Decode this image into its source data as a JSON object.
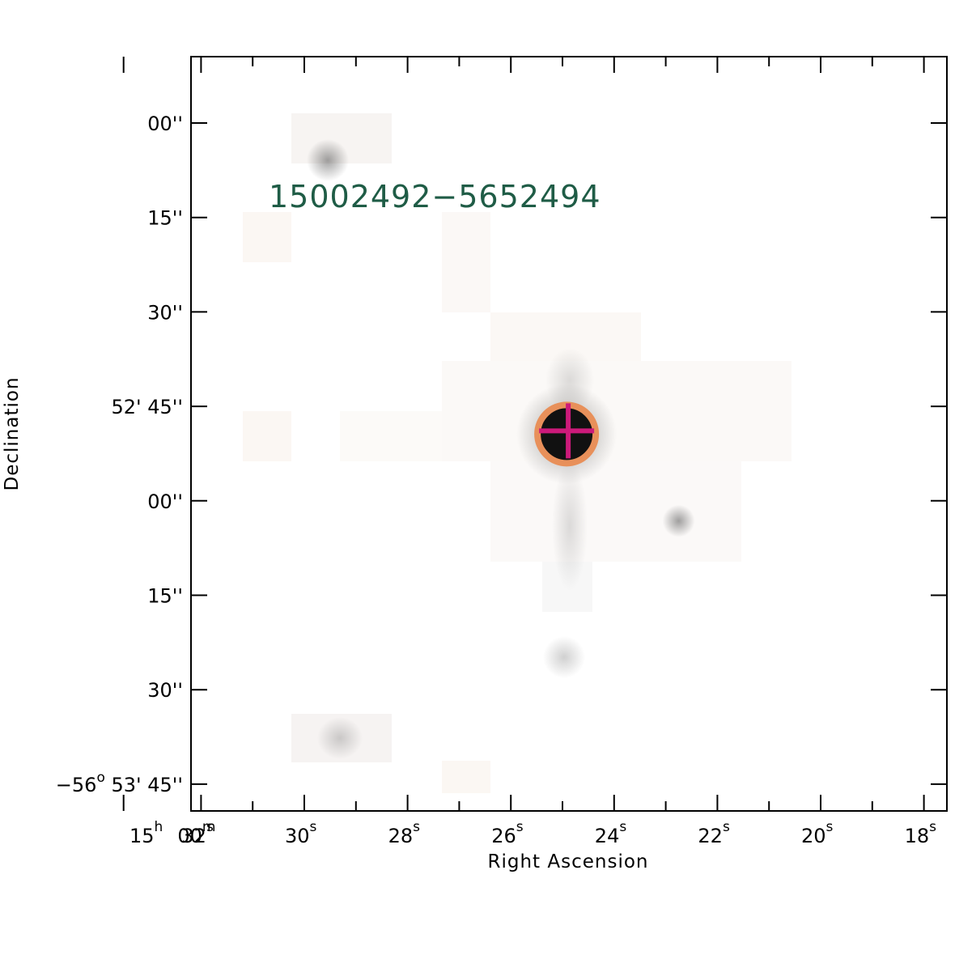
{
  "chart_data": {
    "type": "image",
    "source_label": "15002492−5652494",
    "xlabel": "Right Ascension",
    "ylabel": "Declination",
    "x_ticks": [
      {
        "main": "15",
        "sup1": "h",
        "main2": "00",
        "sup2": "m",
        "value_s": 33.5
      },
      {
        "main": "32",
        "sup1": "s",
        "value_s": 32
      },
      {
        "main": "30",
        "sup1": "s",
        "value_s": 30
      },
      {
        "main": "28",
        "sup1": "s",
        "value_s": 28
      },
      {
        "main": "26",
        "sup1": "s",
        "value_s": 26
      },
      {
        "main": "24",
        "sup1": "s",
        "value_s": 24
      },
      {
        "main": "22",
        "sup1": "s",
        "value_s": 22
      },
      {
        "main": "20",
        "sup1": "s",
        "value_s": 20
      },
      {
        "main": "18",
        "sup1": "s",
        "value_s": 18
      }
    ],
    "y_ticks": [
      {
        "label": "00''",
        "value_arcsec": 0
      },
      {
        "label": "15''",
        "value_arcsec": 15
      },
      {
        "label": "30''",
        "value_arcsec": 30
      },
      {
        "label": "52' 45''",
        "value_arcsec": 45
      },
      {
        "label": "00''",
        "value_arcsec": 60
      },
      {
        "label": "15''",
        "value_arcsec": 75
      },
      {
        "label": "30''",
        "value_arcsec": 90
      },
      {
        "label": "−56",
        "sup": "o",
        "rest": " 53' 45''",
        "value_arcsec": 105
      }
    ],
    "target": {
      "ra_s": 24.92,
      "dec_offset_arcsec": 49.4
    },
    "secondary_source": {
      "ra_s": 22.75,
      "dec_offset_arcsec": 63.2
    },
    "colors": {
      "label": "#1f5c46",
      "circle": "#e8905a",
      "cross": "#cc1a7a",
      "axis": "#000000"
    }
  }
}
